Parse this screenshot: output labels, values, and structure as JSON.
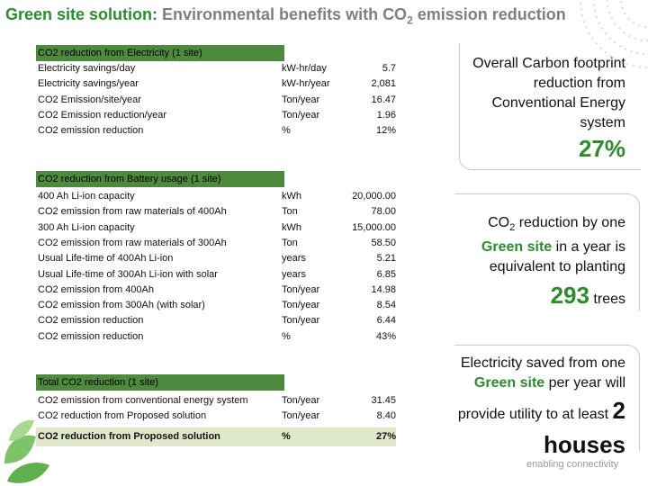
{
  "title": {
    "green": "Green site solution:",
    "rest": " Environmental benefits with CO",
    "sub": "2",
    "tail": " emission reduction"
  },
  "sections": [
    {
      "header": "CO2 reduction from Electricity (1 site)",
      "rows": [
        [
          "Electricity savings/day",
          "kW-hr/day",
          "5.7"
        ],
        [
          "Electricity savings/year",
          "kW-hr/year",
          "2,081"
        ],
        [
          "CO2 Emission/site/year",
          "Ton/year",
          "16.47"
        ],
        [
          "CO2 Emission reduction/year",
          "Ton/year",
          "1.96"
        ],
        [
          "CO2 emission reduction",
          "%",
          "12%"
        ]
      ]
    },
    {
      "header": "CO2 reduction from Battery usage (1 site)",
      "rows": [
        [
          "400 Ah Li-ion capacity",
          "kWh",
          "20,000.00"
        ],
        [
          "CO2 emission from raw materials of 400Ah",
          "Ton",
          "78.00"
        ],
        [
          "300 Ah Li-ion capacity",
          "kWh",
          "15,000.00"
        ],
        [
          "CO2 emission from raw materials of 300Ah",
          "Ton",
          "58.50"
        ],
        [
          "Usual Life-time of 400Ah Li-ion",
          "years",
          "5.21"
        ],
        [
          "Usual Life-time of 300Ah Li-ion with solar",
          "years",
          "6.85"
        ],
        [
          "CO2 emission from 400Ah",
          "Ton/year",
          "14.98"
        ],
        [
          "CO2 emission from 300Ah (with solar)",
          "Ton/year",
          "8.54"
        ],
        [
          "CO2 emission reduction",
          "Ton/year",
          "6.44"
        ],
        [
          "CO2 emission reduction",
          "%",
          "43%"
        ]
      ]
    },
    {
      "header": "Total CO2 reduction (1 site)",
      "rows": [
        [
          "CO2 emission from conventional energy system",
          "Ton/year",
          "31.45"
        ],
        [
          "CO2 reduction from Proposed solution",
          "Ton/year",
          "8.40"
        ]
      ],
      "total_row": [
        "CO2 reduction from Proposed solution",
        "%",
        "27%"
      ]
    }
  ],
  "callouts": [
    {
      "text": "Overall Carbon footprint reduction from Conventional Energy system",
      "figure": "27%"
    },
    {
      "a": "CO",
      "sub": "2",
      "b": " reduction by one ",
      "green": "Green site",
      "c": " in a year is equivalent to planting ",
      "figure": "293",
      "d": " trees"
    },
    {
      "a": "Electricity saved from one ",
      "green": "Green site",
      "b": " per year will provide utility to at least ",
      "figure": "2 houses"
    }
  ],
  "footer": "enabling connectivity"
}
